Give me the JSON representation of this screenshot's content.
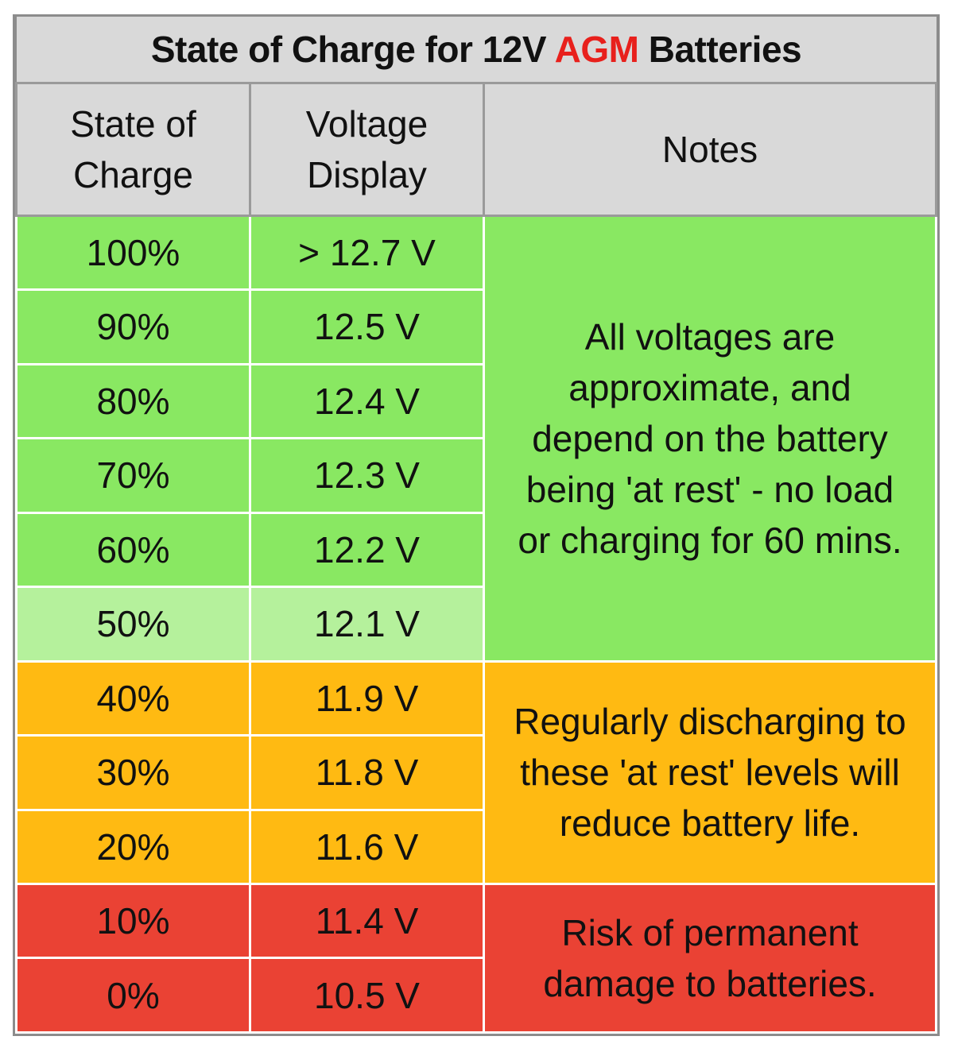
{
  "title": {
    "prefix": "State of Charge for 12V ",
    "accent": "AGM",
    "suffix": " Batteries"
  },
  "headers": {
    "state_line1": "State of",
    "state_line2": "Charge",
    "voltage_line1": "Voltage",
    "voltage_line2": "Display",
    "notes": "Notes"
  },
  "rows": [
    {
      "soc": "100%",
      "voltage": "> 12.7 V"
    },
    {
      "soc": "90%",
      "voltage": "12.5 V"
    },
    {
      "soc": "80%",
      "voltage": "12.4 V"
    },
    {
      "soc": "70%",
      "voltage": "12.3 V"
    },
    {
      "soc": "60%",
      "voltage": "12.2 V"
    },
    {
      "soc": "50%",
      "voltage": "12.1 V"
    },
    {
      "soc": "40%",
      "voltage": "11.9 V"
    },
    {
      "soc": "30%",
      "voltage": "11.8 V"
    },
    {
      "soc": "20%",
      "voltage": "11.6 V"
    },
    {
      "soc": "10%",
      "voltage": "11.4 V"
    },
    {
      "soc": "0%",
      "voltage": "10.5 V"
    }
  ],
  "notes": {
    "green": {
      "line1": "All voltages are",
      "line2": "approximate, and",
      "line3": "depend on the battery",
      "line4": "being 'at rest' - no load",
      "line5": "or charging for 60 mins."
    },
    "amber": {
      "line1": "Regularly discharging to",
      "line2": "these 'at rest' levels will",
      "line3": "reduce battery life."
    },
    "red": {
      "line1": "Risk of permanent",
      "line2": "damage to batteries."
    }
  },
  "colors": {
    "green": "#89e862",
    "light_green": "#b5f19c",
    "amber": "#ffba12",
    "red": "#ea4234",
    "header_gray": "#d9d9d9",
    "accent_red": "#e8201c"
  }
}
